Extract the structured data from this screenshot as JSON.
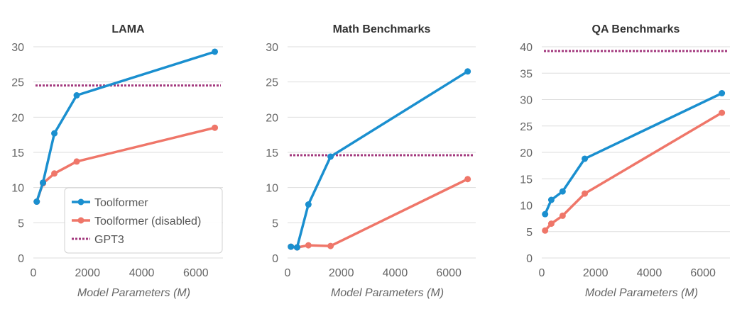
{
  "colors": {
    "Toolformer": "#1a8fcf",
    "Toolformer (disabled)": "#ef7669",
    "GPT3": "#a33a7e",
    "grid": "#dddddd"
  },
  "legend": {
    "location": "lower-right",
    "panel": 0,
    "entries": [
      {
        "label": "Toolformer",
        "style": "line-marker"
      },
      {
        "label": "Toolformer (disabled)",
        "style": "line-marker"
      },
      {
        "label": "GPT3",
        "style": "dotted"
      }
    ]
  },
  "chart_data": [
    {
      "type": "line",
      "title": "LAMA",
      "xlabel": "Model Parameters (M)",
      "ylabel": "",
      "grid": true,
      "xlim": [
        0,
        7000
      ],
      "ylim": [
        0,
        30
      ],
      "xticks": [
        0,
        2000,
        4000,
        6000
      ],
      "yticks": [
        0,
        5,
        10,
        15,
        20,
        25,
        30
      ],
      "series": [
        {
          "name": "Toolformer",
          "x": [
            124,
            355,
            775,
            1600,
            6700
          ],
          "y": [
            8.0,
            10.7,
            17.7,
            23.1,
            29.3
          ]
        },
        {
          "name": "Toolformer (disabled)",
          "x": [
            124,
            355,
            775,
            1600,
            6700
          ],
          "y": [
            8.0,
            10.6,
            12.0,
            13.7,
            18.5
          ]
        }
      ],
      "baselines": [
        {
          "name": "GPT3",
          "y": 24.5
        }
      ]
    },
    {
      "type": "line",
      "title": "Math Benchmarks",
      "xlabel": "Model Parameters (M)",
      "ylabel": "",
      "grid": true,
      "xlim": [
        0,
        7000
      ],
      "ylim": [
        0,
        30
      ],
      "xticks": [
        0,
        2000,
        4000,
        6000
      ],
      "yticks": [
        0,
        5,
        10,
        15,
        20,
        25,
        30
      ],
      "series": [
        {
          "name": "Toolformer",
          "x": [
            124,
            355,
            775,
            1600,
            6700
          ],
          "y": [
            1.6,
            1.5,
            7.6,
            14.4,
            26.5
          ]
        },
        {
          "name": "Toolformer (disabled)",
          "x": [
            124,
            355,
            775,
            1600,
            6700
          ],
          "y": [
            1.6,
            1.5,
            1.8,
            1.7,
            11.2
          ]
        }
      ],
      "baselines": [
        {
          "name": "GPT3",
          "y": 14.6
        }
      ]
    },
    {
      "type": "line",
      "title": "QA Benchmarks",
      "xlabel": "Model Parameters (M)",
      "ylabel": "",
      "grid": true,
      "xlim": [
        0,
        7000
      ],
      "ylim": [
        0,
        40
      ],
      "xticks": [
        0,
        2000,
        4000,
        6000
      ],
      "yticks": [
        0,
        5,
        10,
        15,
        20,
        25,
        30,
        35,
        40
      ],
      "series": [
        {
          "name": "Toolformer",
          "x": [
            124,
            355,
            775,
            1600,
            6700
          ],
          "y": [
            8.3,
            11.0,
            12.6,
            18.8,
            31.2
          ]
        },
        {
          "name": "Toolformer (disabled)",
          "x": [
            124,
            355,
            775,
            1600,
            6700
          ],
          "y": [
            5.2,
            6.5,
            8.0,
            12.2,
            27.5
          ]
        }
      ],
      "baselines": [
        {
          "name": "GPT3",
          "y": 39.2
        }
      ]
    }
  ]
}
